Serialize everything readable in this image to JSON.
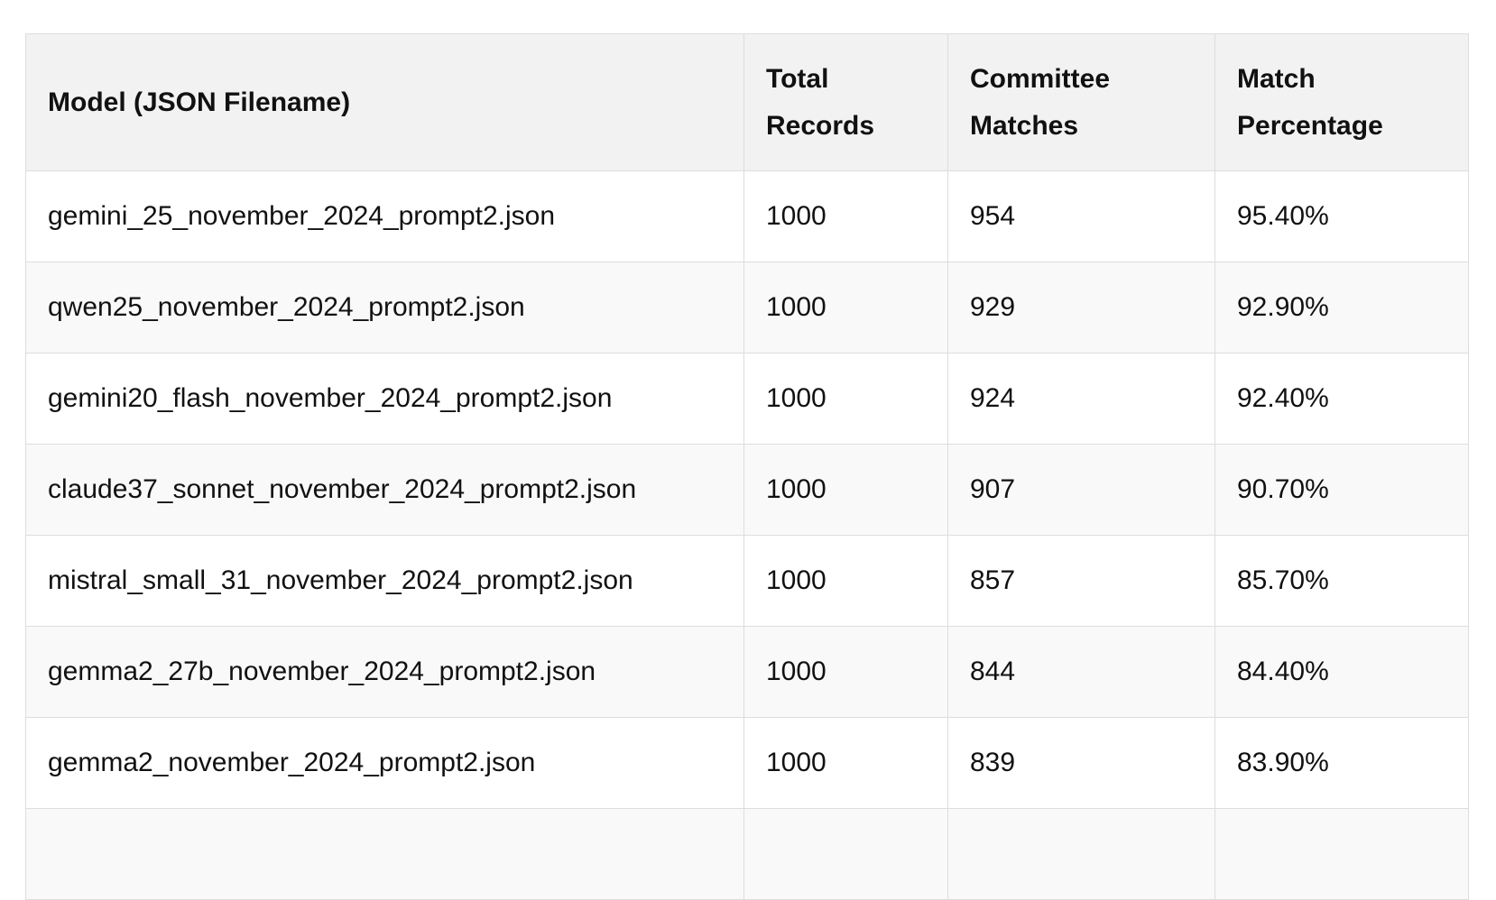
{
  "table": {
    "headers": [
      "Model (JSON Filename)",
      "Total Records",
      "Committee Matches",
      "Match Percentage"
    ],
    "rows": [
      [
        "gemini_25_november_2024_prompt2.json",
        "1000",
        "954",
        "95.40%"
      ],
      [
        "qwen25_november_2024_prompt2.json",
        "1000",
        "929",
        "92.90%"
      ],
      [
        "gemini20_flash_november_2024_prompt2.json",
        "1000",
        "924",
        "92.40%"
      ],
      [
        "claude37_sonnet_november_2024_prompt2.json",
        "1000",
        "907",
        "90.70%"
      ],
      [
        "mistral_small_31_november_2024_prompt2.json",
        "1000",
        "857",
        "85.70%"
      ],
      [
        "gemma2_27b_november_2024_prompt2.json",
        "1000",
        "844",
        "84.40%"
      ],
      [
        "gemma2_november_2024_prompt2.json",
        "1000",
        "839",
        "83.90%"
      ],
      [
        "",
        "",
        "",
        ""
      ]
    ]
  },
  "colors": {
    "header_bg": "#f2f2f2",
    "row_alt_bg": "#f9f9f9",
    "border": "#dddddd"
  }
}
